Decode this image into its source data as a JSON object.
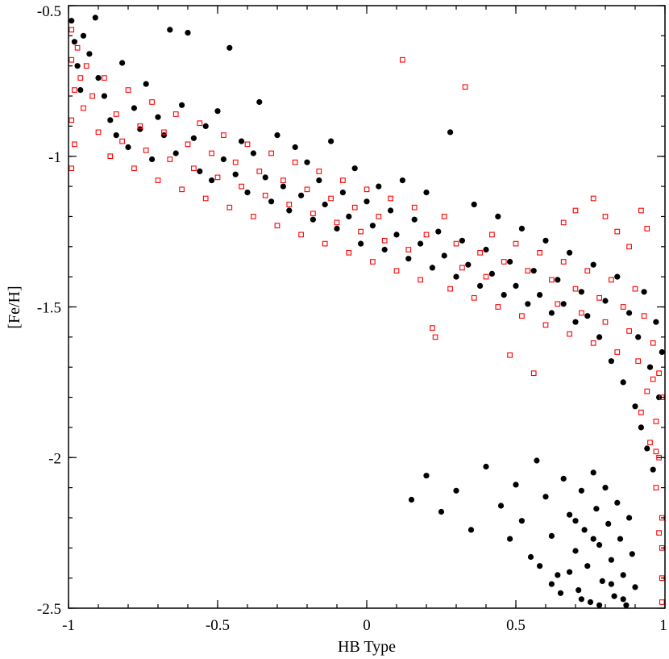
{
  "chart_data": {
    "type": "scatter",
    "xlabel": "HB Type",
    "ylabel": "[Fe/H]",
    "xlim": [
      -1,
      1
    ],
    "ylim": [
      -2.5,
      -0.5
    ],
    "x_ticks": [
      -1,
      -0.5,
      0,
      0.5,
      1
    ],
    "x_tick_labels": [
      "-1",
      "-0.5",
      "0",
      "0.5",
      "1"
    ],
    "y_ticks": [
      -0.5,
      -1,
      -1.5,
      -2,
      -2.5
    ],
    "y_tick_labels": [
      "-0.5",
      "-1",
      "-1.5",
      "-2",
      "-2.5"
    ],
    "grid": false,
    "legend": "none",
    "series": [
      {
        "marker": "filled-circle",
        "color": "#000000",
        "points": [
          [
            -0.99,
            -0.55
          ],
          [
            -0.98,
            -0.62
          ],
          [
            -0.97,
            -0.7
          ],
          [
            -0.96,
            -0.78
          ],
          [
            -0.95,
            -0.6
          ],
          [
            -0.93,
            -0.66
          ],
          [
            -0.91,
            -0.54
          ],
          [
            -0.9,
            -0.74
          ],
          [
            -0.88,
            -0.8
          ],
          [
            -0.86,
            -0.88
          ],
          [
            -0.84,
            -0.93
          ],
          [
            -0.82,
            -0.69
          ],
          [
            -0.8,
            -0.97
          ],
          [
            -0.78,
            -0.84
          ],
          [
            -0.76,
            -0.91
          ],
          [
            -0.74,
            -0.76
          ],
          [
            -0.72,
            -1.01
          ],
          [
            -0.7,
            -0.87
          ],
          [
            -0.68,
            -0.93
          ],
          [
            -0.66,
            -0.58
          ],
          [
            -0.64,
            -0.99
          ],
          [
            -0.62,
            -0.83
          ],
          [
            -0.6,
            -0.59
          ],
          [
            -0.58,
            -0.94
          ],
          [
            -0.56,
            -1.05
          ],
          [
            -0.54,
            -0.9
          ],
          [
            -0.52,
            -1.08
          ],
          [
            -0.5,
            -0.85
          ],
          [
            -0.48,
            -1.01
          ],
          [
            -0.46,
            -0.64
          ],
          [
            -0.44,
            -1.06
          ],
          [
            -0.42,
            -0.95
          ],
          [
            -0.4,
            -1.12
          ],
          [
            -0.38,
            -0.99
          ],
          [
            -0.36,
            -0.82
          ],
          [
            -0.34,
            -1.07
          ],
          [
            -0.32,
            -1.15
          ],
          [
            -0.3,
            -0.93
          ],
          [
            -0.28,
            -1.1
          ],
          [
            -0.26,
            -1.18
          ],
          [
            -0.24,
            -0.97
          ],
          [
            -0.22,
            -1.13
          ],
          [
            -0.2,
            -1.02
          ],
          [
            -0.18,
            -1.21
          ],
          [
            -0.16,
            -1.08
          ],
          [
            -0.14,
            -1.16
          ],
          [
            -0.12,
            -0.95
          ],
          [
            -0.1,
            -1.24
          ],
          [
            -0.08,
            -1.12
          ],
          [
            -0.06,
            -1.2
          ],
          [
            -0.04,
            -1.04
          ],
          [
            -0.02,
            -1.29
          ],
          [
            0.0,
            -1.15
          ],
          [
            0.02,
            -1.23
          ],
          [
            0.04,
            -1.1
          ],
          [
            0.06,
            -1.31
          ],
          [
            0.08,
            -1.18
          ],
          [
            0.1,
            -1.26
          ],
          [
            0.12,
            -1.08
          ],
          [
            0.14,
            -1.34
          ],
          [
            0.16,
            -1.21
          ],
          [
            0.18,
            -1.29
          ],
          [
            0.2,
            -1.12
          ],
          [
            0.22,
            -1.37
          ],
          [
            0.24,
            -1.25
          ],
          [
            0.26,
            -1.33
          ],
          [
            0.28,
            -0.92
          ],
          [
            0.3,
            -1.4
          ],
          [
            0.32,
            -1.28
          ],
          [
            0.34,
            -1.36
          ],
          [
            0.36,
            -1.16
          ],
          [
            0.38,
            -1.43
          ],
          [
            0.4,
            -1.31
          ],
          [
            0.42,
            -1.39
          ],
          [
            0.44,
            -1.2
          ],
          [
            0.46,
            -1.46
          ],
          [
            0.48,
            -1.35
          ],
          [
            0.5,
            -1.43
          ],
          [
            0.52,
            -1.24
          ],
          [
            0.54,
            -1.49
          ],
          [
            0.56,
            -1.38
          ],
          [
            0.58,
            -1.46
          ],
          [
            0.6,
            -1.28
          ],
          [
            0.62,
            -1.52
          ],
          [
            0.64,
            -1.41
          ],
          [
            0.66,
            -1.49
          ],
          [
            0.68,
            -1.32
          ],
          [
            0.7,
            -1.55
          ],
          [
            0.72,
            -1.45
          ],
          [
            0.74,
            -1.53
          ],
          [
            0.76,
            -1.36
          ],
          [
            0.78,
            -1.6
          ],
          [
            0.8,
            -1.48
          ],
          [
            0.82,
            -1.68
          ],
          [
            0.84,
            -1.4
          ],
          [
            0.86,
            -1.75
          ],
          [
            0.88,
            -1.52
          ],
          [
            0.9,
            -1.83
          ],
          [
            0.91,
            -1.6
          ],
          [
            0.92,
            -1.9
          ],
          [
            0.93,
            -1.45
          ],
          [
            0.94,
            -1.97
          ],
          [
            0.95,
            -1.7
          ],
          [
            0.96,
            -2.04
          ],
          [
            0.97,
            -1.55
          ],
          [
            0.98,
            -1.8
          ],
          [
            0.99,
            -1.65
          ],
          [
            0.15,
            -2.14
          ],
          [
            0.2,
            -2.06
          ],
          [
            0.25,
            -2.18
          ],
          [
            0.3,
            -2.11
          ],
          [
            0.35,
            -2.24
          ],
          [
            0.4,
            -2.03
          ],
          [
            0.45,
            -2.16
          ],
          [
            0.48,
            -2.27
          ],
          [
            0.5,
            -2.09
          ],
          [
            0.52,
            -2.21
          ],
          [
            0.55,
            -2.33
          ],
          [
            0.57,
            -2.01
          ],
          [
            0.6,
            -2.13
          ],
          [
            0.62,
            -2.26
          ],
          [
            0.64,
            -2.39
          ],
          [
            0.66,
            -2.07
          ],
          [
            0.68,
            -2.19
          ],
          [
            0.7,
            -2.31
          ],
          [
            0.71,
            -2.44
          ],
          [
            0.72,
            -2.11
          ],
          [
            0.73,
            -2.24
          ],
          [
            0.74,
            -2.36
          ],
          [
            0.75,
            -2.48
          ],
          [
            0.76,
            -2.05
          ],
          [
            0.77,
            -2.17
          ],
          [
            0.78,
            -2.29
          ],
          [
            0.79,
            -2.41
          ],
          [
            0.8,
            -2.1
          ],
          [
            0.81,
            -2.22
          ],
          [
            0.82,
            -2.34
          ],
          [
            0.83,
            -2.46
          ],
          [
            0.84,
            -2.15
          ],
          [
            0.85,
            -2.27
          ],
          [
            0.86,
            -2.39
          ],
          [
            0.87,
            -2.49
          ],
          [
            0.88,
            -2.2
          ],
          [
            0.89,
            -2.32
          ],
          [
            0.9,
            -2.43
          ],
          [
            0.68,
            -2.38
          ],
          [
            0.65,
            -2.45
          ],
          [
            0.62,
            -2.42
          ],
          [
            0.58,
            -2.36
          ],
          [
            0.72,
            -2.47
          ],
          [
            0.78,
            -2.49
          ],
          [
            0.82,
            -2.42
          ],
          [
            0.86,
            -2.47
          ],
          [
            0.76,
            -2.27
          ],
          [
            0.7,
            -2.21
          ]
        ]
      },
      {
        "marker": "open-square",
        "color": "#ff0000",
        "points": [
          [
            -0.99,
            -0.58
          ],
          [
            -0.99,
            -0.68
          ],
          [
            -0.98,
            -0.78
          ],
          [
            -0.99,
            -0.88
          ],
          [
            -0.98,
            -0.96
          ],
          [
            -0.99,
            -1.04
          ],
          [
            -0.97,
            -0.64
          ],
          [
            -0.96,
            -0.74
          ],
          [
            -0.95,
            -0.84
          ],
          [
            -0.94,
            -0.7
          ],
          [
            -0.92,
            -0.8
          ],
          [
            -0.9,
            -0.92
          ],
          [
            -0.88,
            -0.74
          ],
          [
            -0.86,
            -1.0
          ],
          [
            -0.84,
            -0.86
          ],
          [
            -0.82,
            -0.95
          ],
          [
            -0.8,
            -0.78
          ],
          [
            -0.78,
            -1.04
          ],
          [
            -0.76,
            -0.9
          ],
          [
            -0.74,
            -0.98
          ],
          [
            -0.72,
            -0.82
          ],
          [
            -0.7,
            -1.08
          ],
          [
            -0.68,
            -0.92
          ],
          [
            -0.66,
            -1.01
          ],
          [
            -0.64,
            -0.86
          ],
          [
            -0.62,
            -1.11
          ],
          [
            -0.6,
            -0.96
          ],
          [
            -0.58,
            -1.04
          ],
          [
            -0.56,
            -0.89
          ],
          [
            -0.54,
            -1.14
          ],
          [
            -0.52,
            -0.99
          ],
          [
            -0.5,
            -1.07
          ],
          [
            -0.48,
            -0.93
          ],
          [
            -0.46,
            -1.17
          ],
          [
            -0.44,
            -1.02
          ],
          [
            -0.42,
            -1.1
          ],
          [
            -0.4,
            -0.96
          ],
          [
            -0.38,
            -1.2
          ],
          [
            -0.36,
            -1.05
          ],
          [
            -0.34,
            -1.13
          ],
          [
            -0.32,
            -0.99
          ],
          [
            -0.3,
            -1.23
          ],
          [
            -0.28,
            -1.08
          ],
          [
            -0.26,
            -1.16
          ],
          [
            -0.24,
            -1.02
          ],
          [
            -0.22,
            -1.26
          ],
          [
            -0.2,
            -1.11
          ],
          [
            -0.18,
            -1.19
          ],
          [
            -0.16,
            -1.05
          ],
          [
            -0.14,
            -1.29
          ],
          [
            -0.12,
            -1.14
          ],
          [
            -0.1,
            -1.22
          ],
          [
            -0.08,
            -1.08
          ],
          [
            -0.06,
            -1.32
          ],
          [
            -0.04,
            -1.17
          ],
          [
            -0.02,
            -1.25
          ],
          [
            0.0,
            -1.11
          ],
          [
            0.02,
            -1.35
          ],
          [
            0.04,
            -1.2
          ],
          [
            0.06,
            -1.28
          ],
          [
            0.08,
            -1.14
          ],
          [
            0.1,
            -1.38
          ],
          [
            0.12,
            -0.68
          ],
          [
            0.14,
            -1.31
          ],
          [
            0.16,
            -1.17
          ],
          [
            0.18,
            -1.41
          ],
          [
            0.2,
            -1.26
          ],
          [
            0.22,
            -1.57
          ],
          [
            0.23,
            -1.6
          ],
          [
            0.26,
            -1.2
          ],
          [
            0.28,
            -1.44
          ],
          [
            0.3,
            -1.29
          ],
          [
            0.32,
            -1.37
          ],
          [
            0.33,
            -0.77
          ],
          [
            0.36,
            -1.47
          ],
          [
            0.38,
            -1.32
          ],
          [
            0.4,
            -1.4
          ],
          [
            0.42,
            -1.26
          ],
          [
            0.44,
            -1.5
          ],
          [
            0.46,
            -1.35
          ],
          [
            0.48,
            -1.66
          ],
          [
            0.5,
            -1.29
          ],
          [
            0.52,
            -1.53
          ],
          [
            0.54,
            -1.38
          ],
          [
            0.56,
            -1.72
          ],
          [
            0.58,
            -1.32
          ],
          [
            0.6,
            -1.56
          ],
          [
            0.62,
            -1.41
          ],
          [
            0.64,
            -1.49
          ],
          [
            0.66,
            -1.35
          ],
          [
            0.68,
            -1.59
          ],
          [
            0.7,
            -1.44
          ],
          [
            0.72,
            -1.52
          ],
          [
            0.74,
            -1.38
          ],
          [
            0.76,
            -1.62
          ],
          [
            0.78,
            -1.47
          ],
          [
            0.8,
            -1.55
          ],
          [
            0.82,
            -1.41
          ],
          [
            0.84,
            -1.65
          ],
          [
            0.86,
            -1.5
          ],
          [
            0.88,
            -1.58
          ],
          [
            0.9,
            -1.44
          ],
          [
            0.91,
            -1.68
          ],
          [
            0.92,
            -1.85
          ],
          [
            0.93,
            -1.53
          ],
          [
            0.94,
            -1.78
          ],
          [
            0.95,
            -1.95
          ],
          [
            0.96,
            -1.62
          ],
          [
            0.97,
            -1.88
          ],
          [
            0.97,
            -2.1
          ],
          [
            0.98,
            -1.72
          ],
          [
            0.98,
            -2.0
          ],
          [
            0.99,
            -2.2
          ],
          [
            0.99,
            -1.8
          ],
          [
            0.99,
            -2.3
          ],
          [
            0.99,
            -2.4
          ],
          [
            0.99,
            -2.48
          ],
          [
            0.98,
            -2.25
          ],
          [
            0.97,
            -1.98
          ],
          [
            0.96,
            -1.74
          ],
          [
            0.94,
            -1.24
          ],
          [
            0.92,
            -1.18
          ],
          [
            0.88,
            -1.3
          ],
          [
            0.84,
            -1.25
          ],
          [
            0.8,
            -1.2
          ],
          [
            0.76,
            -1.14
          ],
          [
            0.7,
            -1.18
          ],
          [
            0.66,
            -1.22
          ]
        ]
      }
    ]
  }
}
